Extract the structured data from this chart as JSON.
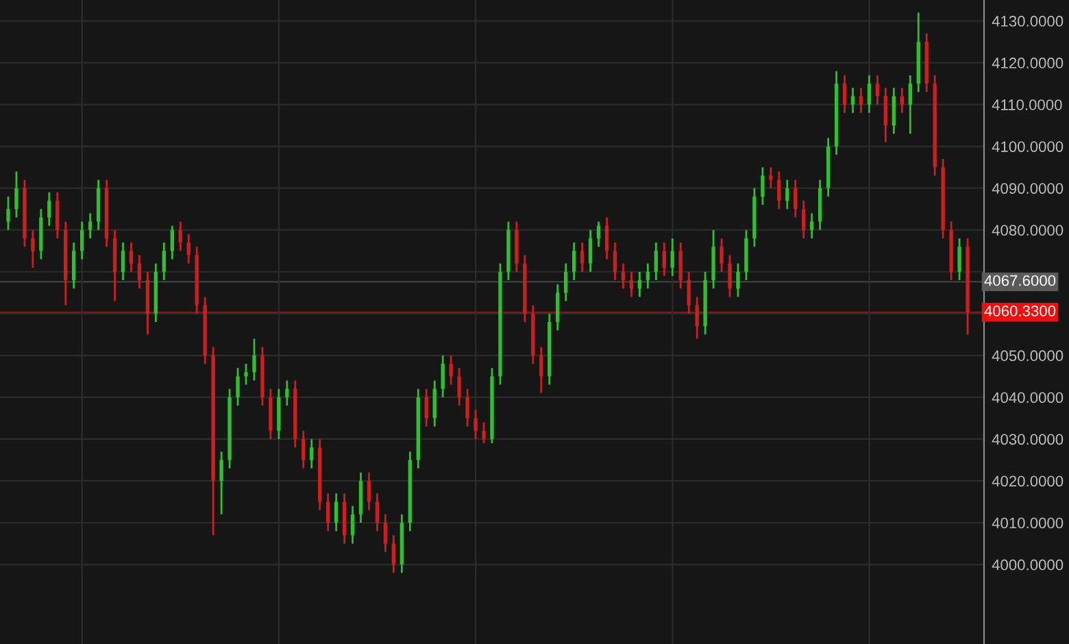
{
  "chart_data": {
    "type": "candlestick",
    "categories": [
      null,
      null,
      null,
      null,
      null,
      null,
      null,
      null,
      null,
      null,
      null,
      null,
      null,
      null,
      null,
      null,
      null,
      null,
      null,
      null,
      null,
      null,
      null,
      null,
      null,
      null,
      null,
      null,
      null,
      null,
      null,
      null,
      null,
      null,
      null,
      null,
      null,
      null,
      null,
      null,
      null,
      null,
      null,
      null,
      null,
      null,
      null,
      null,
      null,
      null,
      null,
      null,
      null,
      null,
      null,
      null,
      null,
      null,
      null,
      null,
      null,
      null,
      null,
      null,
      null,
      null,
      null,
      null,
      null,
      null,
      null,
      null,
      null,
      null,
      null,
      null,
      null,
      null,
      null,
      null,
      null,
      null,
      null,
      null,
      null,
      null,
      null,
      null,
      null,
      null,
      null,
      null,
      null,
      null,
      null,
      null,
      null,
      null,
      null,
      null,
      null,
      null,
      null,
      null,
      null,
      null,
      null,
      null,
      null,
      null,
      null,
      null,
      null,
      null,
      null,
      null,
      null,
      null
    ],
    "ohlc": [
      [
        4082,
        4088,
        4080,
        4085
      ],
      [
        4085,
        4094,
        4083,
        4090
      ],
      [
        4090,
        4092,
        4076,
        4078
      ],
      [
        4078,
        4080,
        4071,
        4075
      ],
      [
        4075,
        4085,
        4073,
        4083
      ],
      [
        4083,
        4089,
        4081,
        4087
      ],
      [
        4087,
        4089,
        4078,
        4080
      ],
      [
        4080,
        4082,
        4062,
        4068
      ],
      [
        4068,
        4077,
        4066,
        4075
      ],
      [
        4075,
        4082,
        4073,
        4080
      ],
      [
        4080,
        4084,
        4078,
        4082
      ],
      [
        4082,
        4092,
        4080,
        4090
      ],
      [
        4090,
        4092,
        4076,
        4078
      ],
      [
        4078,
        4080,
        4063,
        4070
      ],
      [
        4070,
        4077,
        4068,
        4075
      ],
      [
        4075,
        4077,
        4070,
        4072
      ],
      [
        4072,
        4074,
        4066,
        4068
      ],
      [
        4068,
        4070,
        4055,
        4060
      ],
      [
        4060,
        4072,
        4058,
        4070
      ],
      [
        4070,
        4077,
        4068,
        4075
      ],
      [
        4075,
        4081,
        4073,
        4080
      ],
      [
        4080,
        4082,
        4075,
        4077
      ],
      [
        4077,
        4079,
        4072,
        4074
      ],
      [
        4074,
        4076,
        4060,
        4062
      ],
      [
        4062,
        4064,
        4048,
        4050
      ],
      [
        4050,
        4052,
        4007,
        4020
      ],
      [
        4020,
        4027,
        4012,
        4025
      ],
      [
        4025,
        4042,
        4023,
        4040
      ],
      [
        4040,
        4047,
        4038,
        4045
      ],
      [
        4045,
        4048,
        4043,
        4046
      ],
      [
        4046,
        4054,
        4044,
        4050
      ],
      [
        4050,
        4052,
        4038,
        4040
      ],
      [
        4040,
        4042,
        4030,
        4032
      ],
      [
        4032,
        4042,
        4030,
        4040
      ],
      [
        4040,
        4044,
        4038,
        4042
      ],
      [
        4042,
        4044,
        4028,
        4030
      ],
      [
        4030,
        4032,
        4023,
        4025
      ],
      [
        4025,
        4030,
        4023,
        4028
      ],
      [
        4028,
        4030,
        4013,
        4015
      ],
      [
        4015,
        4017,
        4008,
        4010
      ],
      [
        4010,
        4017,
        4008,
        4015
      ],
      [
        4015,
        4017,
        4005,
        4007
      ],
      [
        4007,
        4014,
        4005,
        4012
      ],
      [
        4012,
        4022,
        4010,
        4020
      ],
      [
        4020,
        4022,
        4013,
        4015
      ],
      [
        4015,
        4017,
        4008,
        4010
      ],
      [
        4010,
        4012,
        4003,
        4005
      ],
      [
        4005,
        4007,
        3998,
        4000
      ],
      [
        4000,
        4012,
        3998,
        4010
      ],
      [
        4010,
        4027,
        4008,
        4025
      ],
      [
        4025,
        4042,
        4023,
        4040
      ],
      [
        4040,
        4042,
        4033,
        4035
      ],
      [
        4035,
        4044,
        4033,
        4042
      ],
      [
        4042,
        4050,
        4040,
        4048
      ],
      [
        4048,
        4050,
        4043,
        4045
      ],
      [
        4045,
        4047,
        4038,
        4040
      ],
      [
        4040,
        4042,
        4033,
        4035
      ],
      [
        4035,
        4037,
        4030,
        4032
      ],
      [
        4032,
        4034,
        4029,
        4030
      ],
      [
        4030,
        4047,
        4029,
        4045
      ],
      [
        4045,
        4072,
        4043,
        4070
      ],
      [
        4070,
        4082,
        4068,
        4080
      ],
      [
        4080,
        4082,
        4070,
        4072
      ],
      [
        4072,
        4074,
        4058,
        4060
      ],
      [
        4060,
        4062,
        4048,
        4050
      ],
      [
        4050,
        4052,
        4041,
        4045
      ],
      [
        4045,
        4060,
        4043,
        4058
      ],
      [
        4058,
        4067,
        4056,
        4065
      ],
      [
        4065,
        4072,
        4063,
        4070
      ],
      [
        4070,
        4077,
        4068,
        4075
      ],
      [
        4075,
        4077,
        4070,
        4072
      ],
      [
        4072,
        4080,
        4070,
        4078
      ],
      [
        4078,
        4082,
        4076,
        4081
      ],
      [
        4081,
        4083,
        4073,
        4075
      ],
      [
        4075,
        4077,
        4068,
        4070
      ],
      [
        4070,
        4072,
        4066,
        4068
      ],
      [
        4068,
        4070,
        4064,
        4066
      ],
      [
        4066,
        4070,
        4064,
        4068
      ],
      [
        4068,
        4072,
        4066,
        4070
      ],
      [
        4070,
        4077,
        4068,
        4075
      ],
      [
        4075,
        4077,
        4069,
        4071
      ],
      [
        4071,
        4078,
        4069,
        4075
      ],
      [
        4075,
        4077,
        4066,
        4068
      ],
      [
        4068,
        4070,
        4060,
        4062
      ],
      [
        4062,
        4064,
        4054,
        4057
      ],
      [
        4057,
        4070,
        4055,
        4068
      ],
      [
        4068,
        4080,
        4066,
        4076
      ],
      [
        4076,
        4078,
        4070,
        4072
      ],
      [
        4072,
        4074,
        4064,
        4066
      ],
      [
        4066,
        4072,
        4064,
        4070
      ],
      [
        4070,
        4080,
        4068,
        4078
      ],
      [
        4078,
        4090,
        4076,
        4088
      ],
      [
        4088,
        4095,
        4086,
        4093
      ],
      [
        4093,
        4095,
        4090,
        4092
      ],
      [
        4092,
        4094,
        4085,
        4087
      ],
      [
        4087,
        4092,
        4085,
        4090
      ],
      [
        4090,
        4092,
        4083,
        4085
      ],
      [
        4085,
        4087,
        4078,
        4080
      ],
      [
        4080,
        4084,
        4078,
        4082
      ],
      [
        4082,
        4092,
        4080,
        4090
      ],
      [
        4090,
        4102,
        4088,
        4100
      ],
      [
        4100,
        4118,
        4098,
        4115
      ],
      [
        4115,
        4117,
        4108,
        4110
      ],
      [
        4110,
        4114,
        4108,
        4112
      ],
      [
        4112,
        4114,
        4108,
        4110
      ],
      [
        4110,
        4117,
        4108,
        4115
      ],
      [
        4115,
        4117,
        4110,
        4112
      ],
      [
        4112,
        4114,
        4101,
        4105
      ],
      [
        4105,
        4114,
        4103,
        4112
      ],
      [
        4112,
        4114,
        4108,
        4110
      ],
      [
        4110,
        4117,
        4103,
        4115
      ],
      [
        4115,
        4132,
        4113,
        4125
      ],
      [
        4125,
        4127,
        4113,
        4115
      ],
      [
        4115,
        4117,
        4093,
        4095
      ],
      [
        4095,
        4097,
        4078,
        4080
      ],
      [
        4080,
        4082,
        4068,
        4070
      ],
      [
        4070,
        4078,
        4068,
        4076
      ],
      [
        4076,
        4078,
        4055,
        4060.33
      ]
    ],
    "colors": [
      "#2fbf2f",
      "#2fbf2f",
      "#cc1f1f",
      "#cc1f1f",
      "#2fbf2f",
      "#2fbf2f",
      "#cc1f1f",
      "#cc1f1f",
      "#2fbf2f",
      "#2fbf2f",
      "#2fbf2f",
      "#2fbf2f",
      "#cc1f1f",
      "#cc1f1f",
      "#2fbf2f",
      "#cc1f1f",
      "#cc1f1f",
      "#cc1f1f",
      "#2fbf2f",
      "#2fbf2f",
      "#2fbf2f",
      "#cc1f1f",
      "#cc1f1f",
      "#cc1f1f",
      "#cc1f1f",
      "#cc1f1f",
      "#2fbf2f",
      "#2fbf2f",
      "#2fbf2f",
      "#2fbf2f",
      "#2fbf2f",
      "#cc1f1f",
      "#cc1f1f",
      "#2fbf2f",
      "#2fbf2f",
      "#cc1f1f",
      "#cc1f1f",
      "#2fbf2f",
      "#cc1f1f",
      "#cc1f1f",
      "#2fbf2f",
      "#cc1f1f",
      "#2fbf2f",
      "#2fbf2f",
      "#cc1f1f",
      "#cc1f1f",
      "#cc1f1f",
      "#cc1f1f",
      "#2fbf2f",
      "#2fbf2f",
      "#2fbf2f",
      "#cc1f1f",
      "#2fbf2f",
      "#2fbf2f",
      "#cc1f1f",
      "#cc1f1f",
      "#cc1f1f",
      "#cc1f1f",
      "#cc1f1f",
      "#2fbf2f",
      "#2fbf2f",
      "#2fbf2f",
      "#cc1f1f",
      "#cc1f1f",
      "#cc1f1f",
      "#cc1f1f",
      "#2fbf2f",
      "#2fbf2f",
      "#2fbf2f",
      "#2fbf2f",
      "#cc1f1f",
      "#2fbf2f",
      "#2fbf2f",
      "#cc1f1f",
      "#cc1f1f",
      "#cc1f1f",
      "#cc1f1f",
      "#2fbf2f",
      "#2fbf2f",
      "#2fbf2f",
      "#cc1f1f",
      "#2fbf2f",
      "#cc1f1f",
      "#cc1f1f",
      "#cc1f1f",
      "#2fbf2f",
      "#2fbf2f",
      "#cc1f1f",
      "#cc1f1f",
      "#2fbf2f",
      "#2fbf2f",
      "#2fbf2f",
      "#2fbf2f",
      "#cc1f1f",
      "#cc1f1f",
      "#2fbf2f",
      "#cc1f1f",
      "#cc1f1f",
      "#2fbf2f",
      "#2fbf2f",
      "#2fbf2f",
      "#2fbf2f",
      "#cc1f1f",
      "#2fbf2f",
      "#cc1f1f",
      "#2fbf2f",
      "#cc1f1f",
      "#cc1f1f",
      "#2fbf2f",
      "#cc1f1f",
      "#2fbf2f",
      "#2fbf2f",
      "#cc1f1f",
      "#cc1f1f",
      "#cc1f1f",
      "#cc1f1f",
      "#2fbf2f",
      "#cc1f1f"
    ],
    "ylim": [
      3981,
      4135
    ],
    "yticks": [
      {
        "value": 4000,
        "label": "4000.0000"
      },
      {
        "value": 4010,
        "label": "4010.0000"
      },
      {
        "value": 4020,
        "label": "4020.0000"
      },
      {
        "value": 4030,
        "label": "4030.0000"
      },
      {
        "value": 4040,
        "label": "4040.0000"
      },
      {
        "value": 4050,
        "label": "4050.0000"
      },
      {
        "value": 4060,
        "label": null
      },
      {
        "value": 4070,
        "label": null
      },
      {
        "value": 4080,
        "label": "4080.0000"
      },
      {
        "value": 4090,
        "label": "4090.0000"
      },
      {
        "value": 4100,
        "label": "4100.0000"
      },
      {
        "value": 4110,
        "label": "4110.0000"
      },
      {
        "value": 4120,
        "label": "4120.0000"
      },
      {
        "value": 4130,
        "label": "4130.0000"
      }
    ],
    "ref_lines": [
      {
        "axis": "y",
        "value": 4067.6,
        "label": "4067.6000",
        "color": "#5a5a5a"
      },
      {
        "axis": "y",
        "value": 4060.33,
        "label": "4060.3300",
        "color": "#e81010"
      }
    ],
    "grid": true,
    "tick_labels": "y"
  }
}
